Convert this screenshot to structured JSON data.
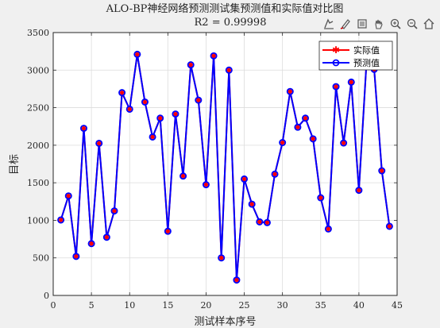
{
  "chart_data": {
    "type": "line",
    "title": "ALO-BP神经网络预测测试集预测值和实际值对比图",
    "subtitle": "R2 = 0.99998",
    "xlabel": "测试样本序号",
    "ylabel": "目标",
    "xlim": [
      0,
      45
    ],
    "ylim": [
      0,
      3500
    ],
    "xticks": [
      "0",
      "5",
      "10",
      "15",
      "20",
      "25",
      "30",
      "35",
      "40",
      "45"
    ],
    "yticks": [
      "0",
      "500",
      "1000",
      "1500",
      "2000",
      "2500",
      "3000",
      "3500"
    ],
    "grid": true,
    "legend_position": "top-right",
    "x": [
      1,
      2,
      3,
      4,
      5,
      6,
      7,
      8,
      9,
      10,
      11,
      12,
      13,
      14,
      15,
      16,
      17,
      18,
      19,
      20,
      21,
      22,
      23,
      24,
      25,
      26,
      27,
      28,
      29,
      30,
      31,
      32,
      33,
      34,
      35,
      36,
      37,
      38,
      39,
      40,
      41,
      42,
      43,
      44
    ],
    "series": [
      {
        "name": "实际值",
        "color": "#ff0000",
        "marker": "asterisk",
        "values": [
          1005,
          1325,
          520,
          2225,
          690,
          2025,
          775,
          1125,
          2700,
          2480,
          3210,
          2575,
          2110,
          2360,
          855,
          2415,
          1590,
          3070,
          2600,
          1475,
          3190,
          500,
          3000,
          205,
          1550,
          1215,
          980,
          970,
          1615,
          2035,
          2715,
          2240,
          2360,
          2085,
          1300,
          885,
          2780,
          2030,
          2840,
          1400,
          3110,
          3010,
          1660,
          920
        ]
      },
      {
        "name": "预测值",
        "color": "#0000ff",
        "marker": "circle",
        "values": [
          1005,
          1325,
          520,
          2225,
          690,
          2025,
          775,
          1125,
          2700,
          2480,
          3210,
          2575,
          2110,
          2360,
          855,
          2415,
          1590,
          3070,
          2600,
          1475,
          3190,
          500,
          3000,
          205,
          1550,
          1215,
          980,
          970,
          1615,
          2035,
          2715,
          2240,
          2360,
          2085,
          1300,
          885,
          2780,
          2030,
          2840,
          1400,
          3110,
          3010,
          1660,
          920
        ]
      }
    ]
  },
  "toolbar": {
    "icons": [
      "data-tips-icon",
      "brush-icon",
      "link-icon",
      "pan-icon",
      "zoom-in-icon",
      "zoom-out-icon",
      "home-icon"
    ]
  }
}
